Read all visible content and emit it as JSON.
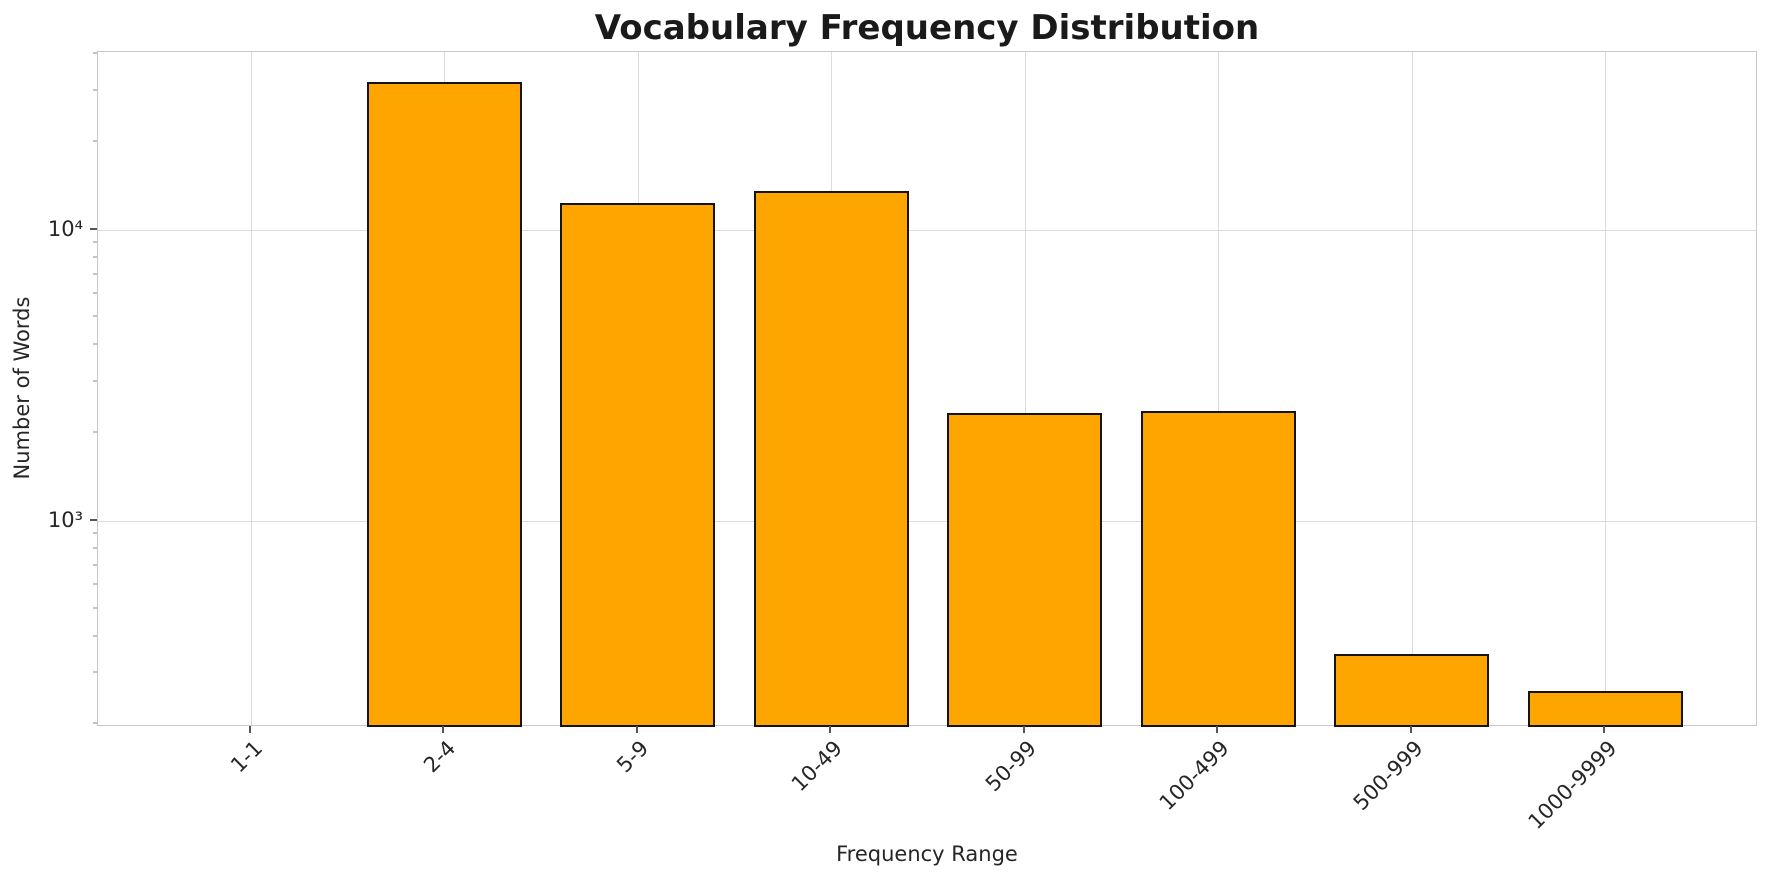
{
  "chart_data": {
    "type": "bar",
    "title": "Vocabulary Frequency Distribution",
    "xlabel": "Frequency Range",
    "ylabel": "Number of Words",
    "categories": [
      "1-1",
      "2-4",
      "5-9",
      "10-49",
      "50-99",
      "100-499",
      "500-999",
      "1000-9999"
    ],
    "values": [
      0,
      32000,
      12300,
      13600,
      2350,
      2380,
      350,
      260
    ],
    "y_scale": "log",
    "ylim": [
      196,
      40700
    ],
    "xlim": [
      -0.79,
      7.79
    ],
    "y_ticks": [
      {
        "value": 1000,
        "label": "10³"
      },
      {
        "value": 10000,
        "label": "10⁴"
      }
    ],
    "grid": true,
    "legend": "none",
    "bar_width_fraction": 0.8,
    "bar_color": "#FFA500",
    "bar_edge_color": "#141414"
  }
}
